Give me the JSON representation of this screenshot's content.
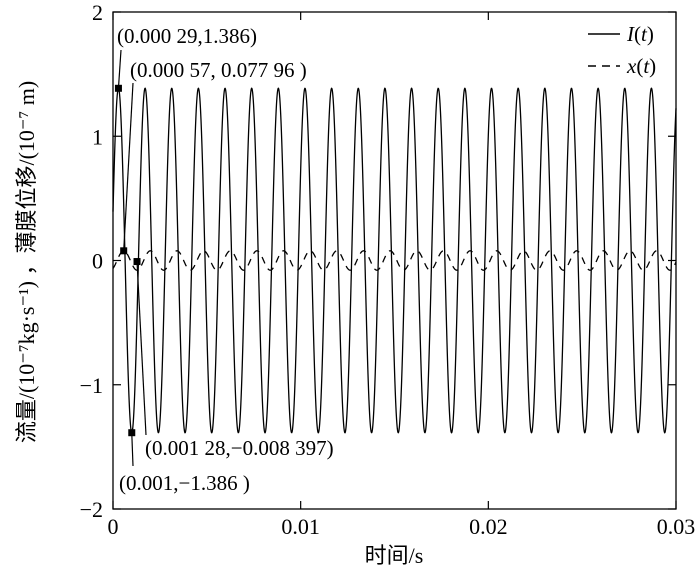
{
  "chart_data": {
    "type": "line",
    "xlabel": "时间/s",
    "ylabel": "流量/(10⁻⁷kg·s⁻¹) ，薄膜位移/(10⁻⁷ m)",
    "xlim": [
      0,
      0.03
    ],
    "ylim": [
      -2,
      2
    ],
    "x_ticks": [
      0,
      0.01,
      0.02,
      0.03
    ],
    "x_tick_labels": [
      "0",
      "0.01",
      "0.02",
      "0.03"
    ],
    "y_ticks": [
      -2,
      -1,
      0,
      1,
      2
    ],
    "y_tick_labels": [
      "−2",
      "−1",
      "0",
      "1",
      "2"
    ],
    "grid": false,
    "legend_position": "top-right",
    "series": [
      {
        "name": "I(t)",
        "style": "solid",
        "amplitude": 1.386,
        "period": 0.00142,
        "phase_peak_x": 0.00029,
        "x_range": [
          0,
          0.03
        ]
      },
      {
        "name": "x(t)",
        "style": "dashed",
        "amplitude": 0.078,
        "period": 0.00142,
        "phase_peak_x": 0.00057,
        "x_range": [
          0,
          0.03
        ]
      }
    ],
    "annotations": [
      {
        "label": "(0.000 29,1.386)",
        "x": 0.00029,
        "y": 1.386
      },
      {
        "label": "(0.000 57, 0.077 96 )",
        "x": 0.00057,
        "y": 0.07796
      },
      {
        "label": "(0.001 28,−0.008 397)",
        "x": 0.00128,
        "y": -0.008397
      },
      {
        "label": "(0.001,−1.386 )",
        "x": 0.001,
        "y": -1.386
      }
    ]
  },
  "colors": {
    "line": "#000000",
    "background": "#ffffff"
  }
}
